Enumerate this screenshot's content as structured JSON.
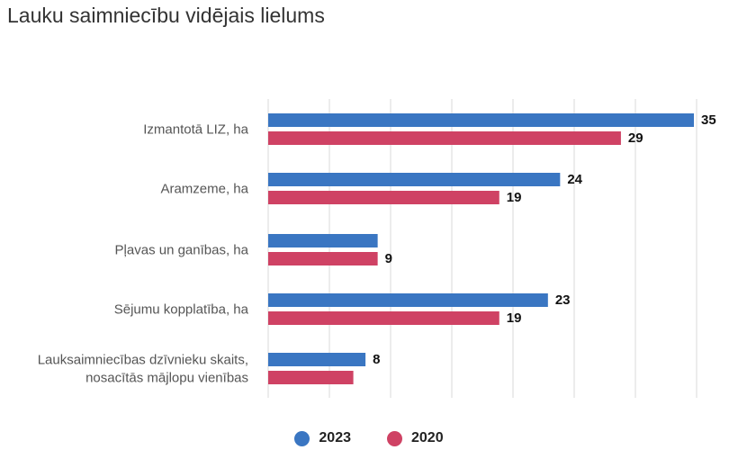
{
  "chart_data": {
    "type": "bar",
    "orientation": "horizontal",
    "title": "Lauku saimniecību vidējais lielums",
    "categories": [
      [
        "Izmantotā LIZ, ha"
      ],
      [
        "Aramzeme, ha"
      ],
      [
        "Pļavas un ganības, ha"
      ],
      [
        "Sējumu kopplatība, ha"
      ],
      [
        "Lauksaimniecības dzīvnieku skaits,",
        "nosacītās mājlopu vienības"
      ]
    ],
    "series": [
      {
        "name": "2023",
        "color": "#3a76c2",
        "values": [
          35,
          24,
          9,
          23,
          8
        ],
        "labels": [
          "35",
          "24",
          "",
          "23",
          "8"
        ]
      },
      {
        "name": "2020",
        "color": "#cf4264",
        "values": [
          29,
          19,
          9,
          19,
          7
        ],
        "labels": [
          "29",
          "19",
          "9",
          "19",
          ""
        ]
      }
    ],
    "xlim": [
      0,
      35
    ],
    "grid": true,
    "legend_position": "bottom"
  }
}
